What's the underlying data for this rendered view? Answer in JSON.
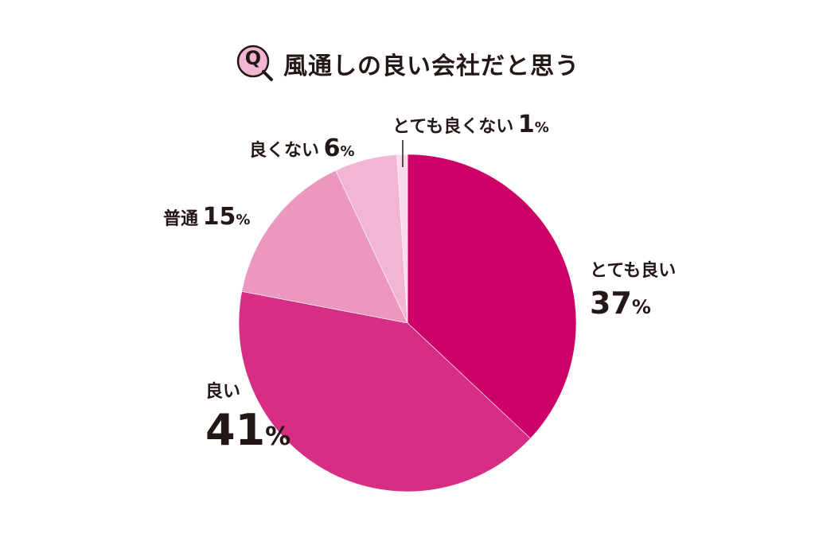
{
  "title": {
    "q_mark": "Q",
    "text": "風通しの良い会社だと思う"
  },
  "chart_data": {
    "type": "pie",
    "title": "風通しの良い会社だと思う",
    "unit": "%",
    "slices": [
      {
        "label": "とても良い",
        "value": 37,
        "color": "#cc0066"
      },
      {
        "label": "良い",
        "value": 41,
        "color": "#d62e84"
      },
      {
        "label": "普通",
        "value": 15,
        "color": "#ec97c0"
      },
      {
        "label": "良くない",
        "value": 6,
        "color": "#f2b6d3"
      },
      {
        "label": "とても良くない",
        "value": 1,
        "color": "#f8dbe9"
      }
    ]
  }
}
